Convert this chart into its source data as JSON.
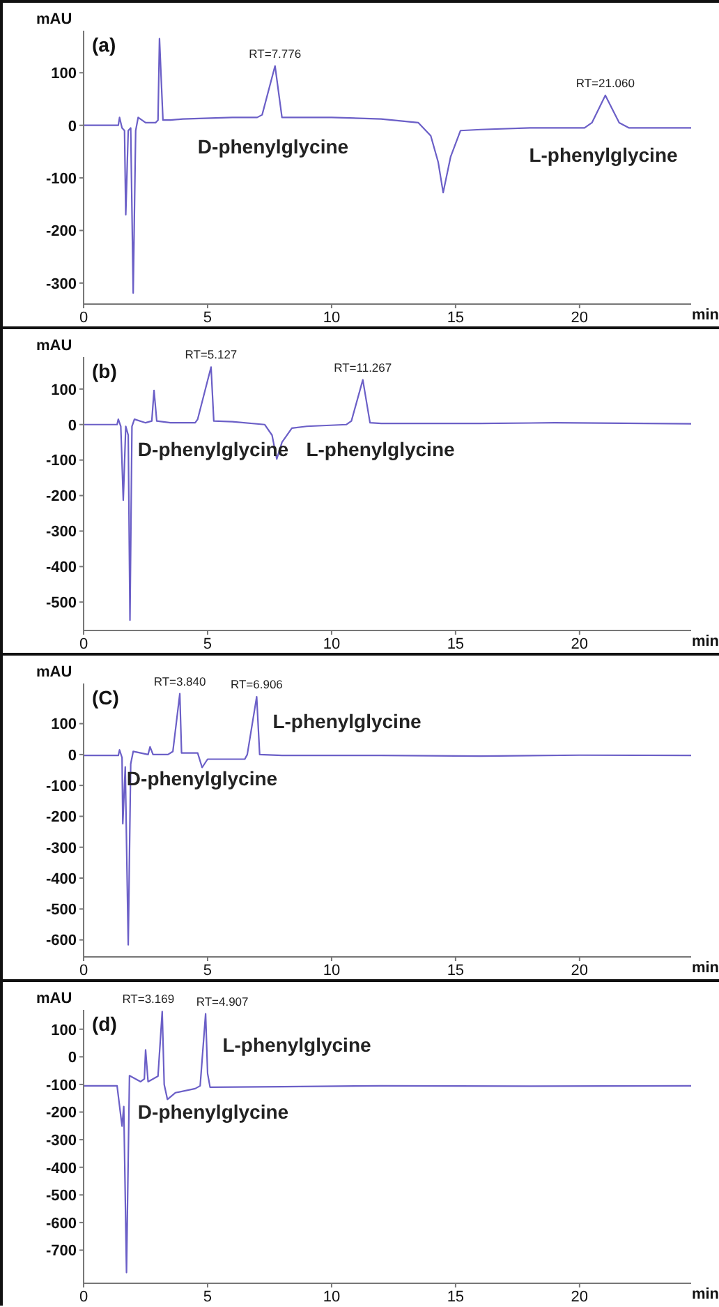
{
  "chart_data": [
    {
      "type": "line",
      "title": "(a)",
      "xlabel": "min",
      "ylabel": "mAU",
      "xlim": [
        0,
        24.5
      ],
      "xticks": [
        0,
        5,
        10,
        15,
        20
      ],
      "ylim": [
        -340,
        180
      ],
      "yticks": [
        -300,
        -200,
        -100,
        0,
        100
      ],
      "grid": false,
      "legend": false,
      "marker": "none",
      "series": [
        {
          "color": "#6b5fc7",
          "x": [
            0,
            1.4,
            1.45,
            1.55,
            1.65,
            1.7,
            1.8,
            1.9,
            2.0,
            2.1,
            2.2,
            2.5,
            2.9,
            3.0,
            3.06,
            3.2,
            3.5,
            4,
            6,
            7,
            7.2,
            7.72,
            8.0,
            10,
            12,
            13.5,
            14.0,
            14.3,
            14.5,
            14.8,
            15.2,
            16,
            18,
            20.2,
            20.5,
            21.04,
            21.6,
            22,
            24.5
          ],
          "values": [
            0,
            0,
            15,
            -5,
            -10,
            -170,
            -10,
            -5,
            -319,
            -10,
            15,
            5,
            5,
            10,
            165,
            10,
            10,
            12,
            15,
            15,
            20,
            113,
            15,
            15,
            12,
            5,
            -20,
            -70,
            -128,
            -60,
            -10,
            -8,
            -5,
            -5,
            5,
            57,
            5,
            -5,
            -5
          ]
        }
      ],
      "annotations": [
        {
          "text": "RT=7.776",
          "x": 7.72,
          "y": 113
        },
        {
          "text": "RT=21.060",
          "x": 21.04,
          "y": 57
        },
        "D-phenylglycine",
        "L-phenylglycine"
      ]
    },
    {
      "type": "line",
      "title": "(b)",
      "xlabel": "min",
      "ylabel": "mAU",
      "xlim": [
        0,
        24.5
      ],
      "xticks": [
        0,
        5,
        10,
        15,
        20
      ],
      "ylim": [
        -580,
        190
      ],
      "yticks": [
        -500,
        -400,
        -300,
        -200,
        -100,
        0,
        100
      ],
      "grid": false,
      "legend": false,
      "marker": "none",
      "series": [
        {
          "color": "#6b5fc7",
          "x": [
            0,
            1.35,
            1.4,
            1.5,
            1.6,
            1.7,
            1.8,
            1.87,
            1.95,
            2.05,
            2.5,
            2.75,
            2.84,
            2.95,
            3.5,
            4.5,
            4.6,
            5.14,
            5.25,
            6,
            7.3,
            7.6,
            7.79,
            8.0,
            8.4,
            9,
            10.6,
            10.8,
            11.26,
            11.55,
            12,
            16,
            19,
            24.5
          ],
          "values": [
            0,
            0,
            15,
            -5,
            -213,
            -5,
            -30,
            -551,
            -5,
            15,
            5,
            10,
            96,
            10,
            5,
            5,
            15,
            162,
            10,
            8,
            0,
            -30,
            -97,
            -50,
            -10,
            -5,
            0,
            10,
            126,
            5,
            3,
            3,
            5,
            2
          ]
        }
      ],
      "annotations": [
        {
          "text": "RT=5.127",
          "x": 5.14,
          "y": 162
        },
        {
          "text": "RT=11.267",
          "x": 11.26,
          "y": 126
        },
        "D-phenylglycine",
        "L-phenylglycine"
      ]
    },
    {
      "type": "line",
      "title": "(C)",
      "xlabel": "min",
      "ylabel": "mAU",
      "xlim": [
        0,
        24.5
      ],
      "xticks": [
        0,
        5,
        10,
        15,
        20
      ],
      "ylim": [
        -655,
        230
      ],
      "yticks": [
        -600,
        -500,
        -400,
        -300,
        -200,
        -100,
        0,
        100
      ],
      "grid": false,
      "legend": false,
      "marker": "none",
      "series": [
        {
          "color": "#6b5fc7",
          "x": [
            0,
            1.4,
            1.45,
            1.55,
            1.58,
            1.68,
            1.8,
            1.9,
            2.0,
            2.6,
            2.68,
            2.8,
            3.4,
            3.6,
            3.88,
            3.95,
            4.6,
            4.78,
            5.0,
            6.5,
            6.6,
            6.98,
            7.1,
            8,
            12,
            16,
            20,
            24.5
          ],
          "values": [
            -3,
            -3,
            15,
            -10,
            -224,
            -40,
            -616,
            -30,
            10,
            0,
            25,
            0,
            0,
            10,
            197,
            5,
            5,
            -42,
            -15,
            -15,
            0,
            187,
            0,
            -3,
            -3,
            -5,
            -2,
            -3
          ]
        }
      ],
      "annotations": [
        {
          "text": "RT=3.840",
          "x": 3.88,
          "y": 197
        },
        {
          "text": "RT=6.906",
          "x": 6.98,
          "y": 187
        },
        "D-phenylglycine",
        "L-phenylglycine"
      ]
    },
    {
      "type": "line",
      "title": "(d)",
      "xlabel": "min",
      "ylabel": "mAU",
      "xlim": [
        0,
        24.5
      ],
      "xticks": [
        0,
        5,
        10,
        15,
        20
      ],
      "ylim": [
        -820,
        170
      ],
      "yticks": [
        -700,
        -600,
        -500,
        -400,
        -300,
        -200,
        -100,
        0,
        100
      ],
      "grid": false,
      "legend": false,
      "marker": "none",
      "series": [
        {
          "color": "#6b5fc7",
          "x": [
            0,
            1.35,
            1.55,
            1.62,
            1.73,
            1.85,
            2.3,
            2.45,
            2.5,
            2.6,
            3.0,
            3.17,
            3.25,
            3.38,
            3.7,
            4.5,
            4.7,
            4.92,
            5.0,
            5.1,
            8,
            12,
            18,
            24.5
          ],
          "values": [
            -105,
            -105,
            -251,
            -180,
            -781,
            -68,
            -90,
            -80,
            25,
            -90,
            -70,
            164,
            -100,
            -154,
            -130,
            -115,
            -105,
            156,
            -60,
            -110,
            -108,
            -105,
            -106,
            -105
          ]
        }
      ],
      "annotations": [
        {
          "text": "RT=3.169",
          "x": 3.17,
          "y": 164
        },
        {
          "text": "RT=4.907",
          "x": 4.92,
          "y": 156
        },
        "D-phenylglycine",
        "L-phenylglycine"
      ]
    }
  ]
}
